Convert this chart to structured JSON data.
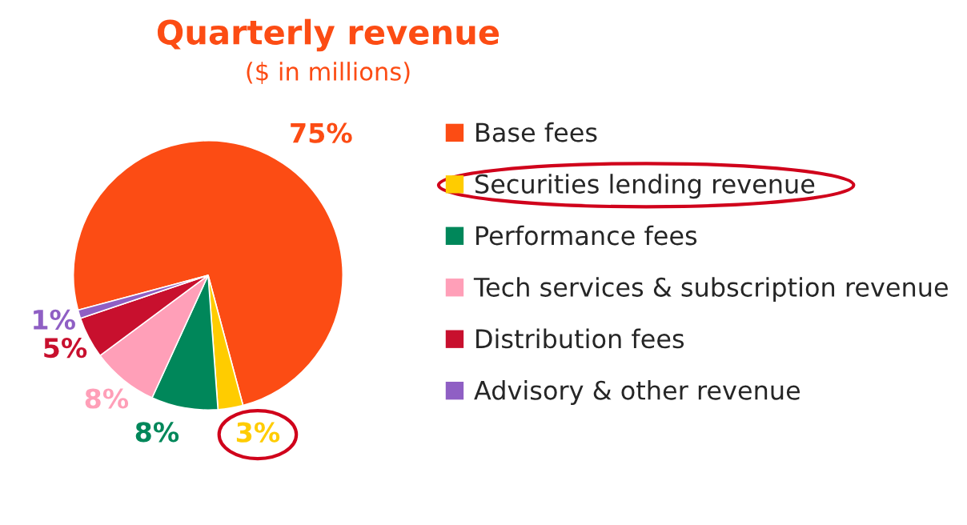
{
  "chart_data": {
    "type": "pie",
    "title": "Quarterly revenue",
    "subtitle": "($ in millions)",
    "categories": [
      "Base fees",
      "Securities lending revenue",
      "Performance fees",
      "Tech services & subscription revenue",
      "Distribution fees",
      "Advisory & other revenue"
    ],
    "values": [
      75,
      3,
      8,
      8,
      5,
      1
    ],
    "value_labels": [
      "75%",
      "3%",
      "8%",
      "8%",
      "5%",
      "1%"
    ],
    "colors": [
      "#fc4c14",
      "#ffcc00",
      "#00875a",
      "#ff9fb8",
      "#c8102e",
      "#8f5fc4"
    ],
    "legend": "right"
  }
}
